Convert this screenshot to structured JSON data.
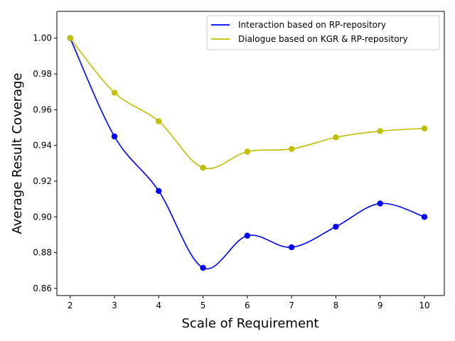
{
  "chart_data": {
    "type": "line",
    "title": "",
    "xlabel": "Scale of Requirement",
    "ylabel": "Average Result Coverage",
    "x": [
      2,
      3,
      4,
      5,
      6,
      7,
      8,
      9,
      10
    ],
    "xlim": [
      1.7,
      10.45
    ],
    "ylim": [
      0.856,
      1.015
    ],
    "xticks": [
      "2",
      "3",
      "4",
      "5",
      "6",
      "7",
      "8",
      "9",
      "10"
    ],
    "yticks": [
      "0.86",
      "0.88",
      "0.90",
      "0.92",
      "0.94",
      "0.96",
      "0.98",
      "1.00"
    ],
    "ytick_values": [
      0.86,
      0.88,
      0.9,
      0.92,
      0.94,
      0.96,
      0.98,
      1.0
    ],
    "grid": false,
    "legend_position": "top-right",
    "series": [
      {
        "name": "Interaction based on RP-repository",
        "color": "#0000ff",
        "values": [
          1.0,
          0.945,
          0.9145,
          0.8715,
          0.8895,
          0.883,
          0.8945,
          0.9075,
          0.9
        ]
      },
      {
        "name": "Dialogue based on KGR & RP-repository",
        "color": "#bfbf00",
        "values": [
          1.0,
          0.9695,
          0.9535,
          0.9275,
          0.9365,
          0.938,
          0.9445,
          0.948,
          0.9495
        ]
      }
    ]
  }
}
